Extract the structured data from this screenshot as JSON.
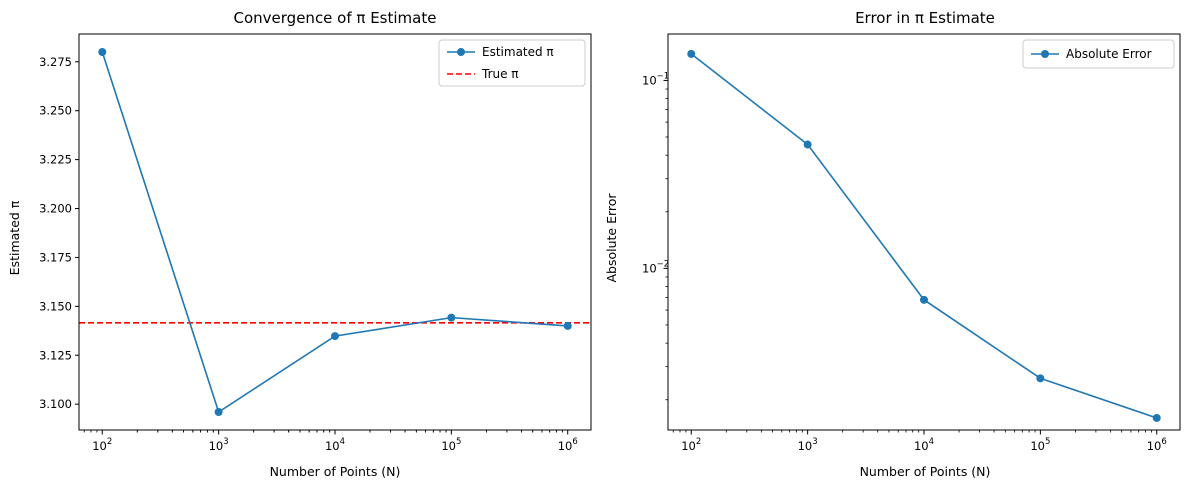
{
  "chart_data": [
    {
      "type": "line",
      "title": "Convergence of π Estimate",
      "xlabel": "Number of Points (N)",
      "ylabel": "Estimated π",
      "xscale": "log",
      "x": [
        100,
        1000,
        10000,
        100000,
        1000000
      ],
      "xticks": [
        {
          "base": "10",
          "exp": "2"
        },
        {
          "base": "10",
          "exp": "3"
        },
        {
          "base": "10",
          "exp": "4"
        },
        {
          "base": "10",
          "exp": "5"
        },
        {
          "base": "10",
          "exp": "6"
        }
      ],
      "yticks": [
        "3.100",
        "3.125",
        "3.150",
        "3.175",
        "3.200",
        "3.225",
        "3.250",
        "3.275"
      ],
      "ylim": [
        3.0868,
        3.2892
      ],
      "xlim_log10": [
        1.8,
        6.2
      ],
      "series": [
        {
          "name": "Estimated π",
          "values": [
            3.28,
            3.096,
            3.1348,
            3.14424,
            3.14
          ],
          "color": "#1f77b4",
          "style": "solid",
          "marker": "circle"
        }
      ],
      "hlines": [
        {
          "name": "True π",
          "value": 3.14159,
          "color": "#ff0000",
          "style": "dashed"
        }
      ],
      "legend": {
        "position": "top-right",
        "entries": [
          "Estimated π",
          "True π"
        ]
      }
    },
    {
      "type": "line",
      "title": "Error in π Estimate",
      "xlabel": "Number of Points (N)",
      "ylabel": "Absolute Error",
      "xscale": "log",
      "yscale": "log",
      "x": [
        100,
        1000,
        10000,
        100000,
        1000000
      ],
      "xticks": [
        {
          "base": "10",
          "exp": "2"
        },
        {
          "base": "10",
          "exp": "3"
        },
        {
          "base": "10",
          "exp": "4"
        },
        {
          "base": "10",
          "exp": "5"
        },
        {
          "base": "10",
          "exp": "6"
        }
      ],
      "yticks_major": [
        {
          "base": "10",
          "exp": "−1",
          "value": 0.1
        },
        {
          "base": "10",
          "exp": "−2",
          "value": 0.01
        }
      ],
      "ylim_log10": [
        -2.86,
        -0.753
      ],
      "xlim_log10": [
        1.8,
        6.2
      ],
      "series": [
        {
          "name": "Absolute Error",
          "values": [
            0.1384,
            0.0456,
            0.0068,
            0.0026,
            0.0016
          ],
          "color": "#1f77b4",
          "style": "solid",
          "marker": "circle"
        }
      ],
      "legend": {
        "position": "top-right",
        "entries": [
          "Absolute Error"
        ]
      }
    }
  ]
}
